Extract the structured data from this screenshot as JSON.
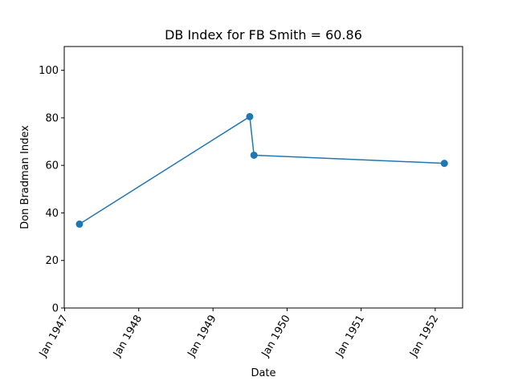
{
  "chart_data": {
    "type": "line",
    "title": "DB Index for FB Smith = 60.86",
    "xlabel": "Date",
    "ylabel": "Don Bradman Index",
    "ylim": [
      0,
      110
    ],
    "xlim": [
      "1946-12-30",
      "1952-05-15"
    ],
    "x_tick_labels": [
      {
        "date": "1947-01-01",
        "label": "Jan 1947"
      },
      {
        "date": "1948-01-01",
        "label": "Jan 1948"
      },
      {
        "date": "1949-01-01",
        "label": "Jan 1949"
      },
      {
        "date": "1950-01-01",
        "label": "Jan 1950"
      },
      {
        "date": "1951-01-01",
        "label": "Jan 1951"
      },
      {
        "date": "1952-01-01",
        "label": "Jan 1952"
      }
    ],
    "y_ticks": [
      0,
      20,
      40,
      60,
      80,
      100
    ],
    "grid": false,
    "series": [
      {
        "color": "#1f77b4",
        "marker": "circle",
        "points": [
          {
            "x": "1947-03-15",
            "y": 35.3
          },
          {
            "x": "1949-07-01",
            "y": 80.5
          },
          {
            "x": "1949-07-22",
            "y": 64.3
          },
          {
            "x": "1952-02-15",
            "y": 60.86
          }
        ]
      }
    ]
  }
}
